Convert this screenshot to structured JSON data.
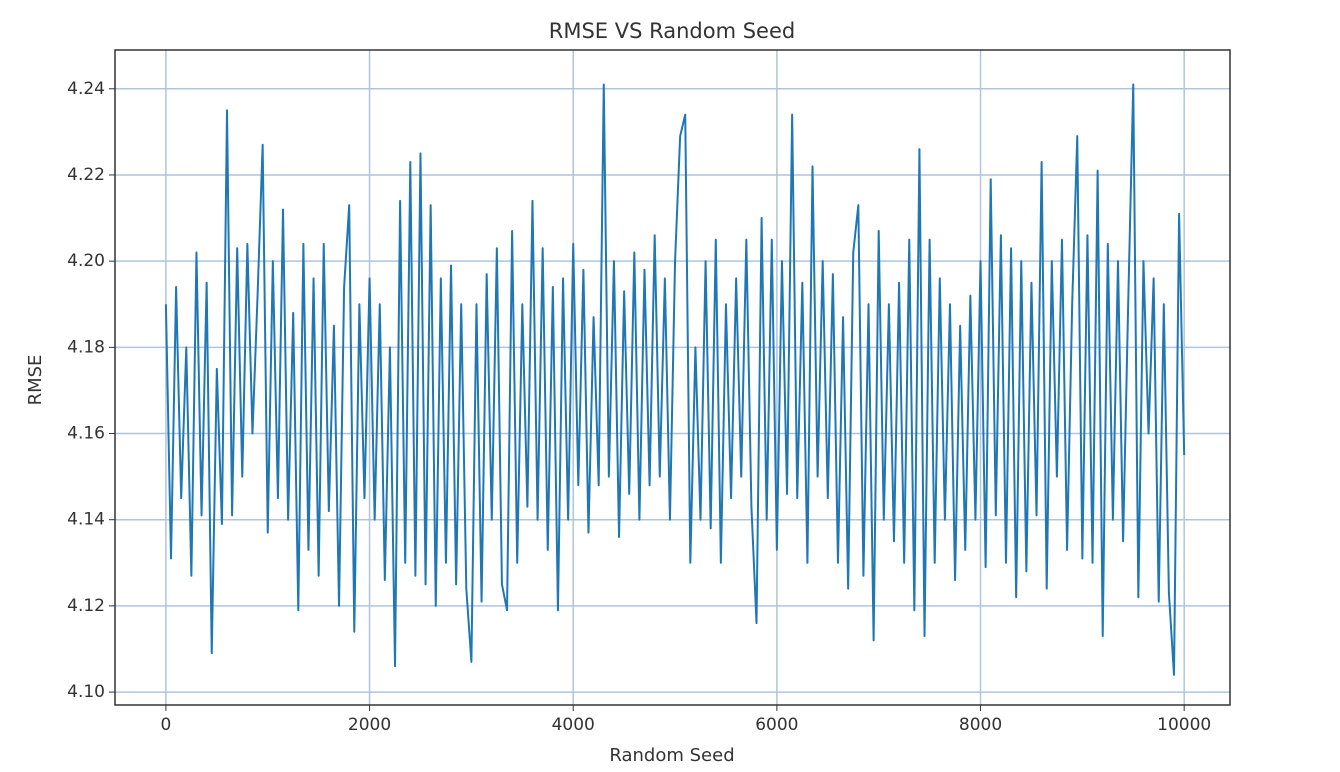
{
  "chart_data": {
    "type": "line",
    "title": "RMSE VS Random Seed",
    "x_label": "Random Seed",
    "y_label": "RMSE",
    "color": "#1f77b4",
    "grid": true,
    "xlim": [
      -500,
      10450
    ],
    "ylim": [
      4.097,
      4.249
    ],
    "xticks": [
      0,
      2000,
      4000,
      6000,
      8000,
      10000
    ],
    "yticks": [
      {
        "value": 4.1,
        "label": "4.10"
      },
      4.12,
      4.14,
      4.16,
      4.18,
      {
        "value": 4.2,
        "label": "4.20"
      },
      4.22,
      4.24
    ],
    "x": [
      0,
      50,
      100,
      150,
      200,
      250,
      300,
      350,
      400,
      450,
      500,
      550,
      600,
      650,
      700,
      750,
      800,
      850,
      900,
      950,
      1000,
      1050,
      1100,
      1150,
      1200,
      1250,
      1300,
      1350,
      1400,
      1450,
      1500,
      1550,
      1600,
      1650,
      1700,
      1750,
      1800,
      1850,
      1900,
      1950,
      2000,
      2050,
      2100,
      2150,
      2200,
      2250,
      2300,
      2350,
      2400,
      2450,
      2500,
      2550,
      2600,
      2650,
      2700,
      2750,
      2800,
      2850,
      2900,
      2950,
      3000,
      3050,
      3100,
      3150,
      3200,
      3250,
      3300,
      3350,
      3400,
      3450,
      3500,
      3550,
      3600,
      3650,
      3700,
      3750,
      3800,
      3850,
      3900,
      3950,
      4000,
      4050,
      4100,
      4150,
      4200,
      4250,
      4300,
      4350,
      4400,
      4450,
      4500,
      4550,
      4600,
      4650,
      4700,
      4750,
      4800,
      4850,
      4900,
      4950,
      5000,
      5050,
      5100,
      5150,
      5200,
      5250,
      5300,
      5350,
      5400,
      5450,
      5500,
      5550,
      5600,
      5650,
      5700,
      5750,
      5800,
      5850,
      5900,
      5950,
      6000,
      6050,
      6100,
      6150,
      6200,
      6250,
      6300,
      6350,
      6400,
      6450,
      6500,
      6550,
      6600,
      6650,
      6700,
      6750,
      6800,
      6850,
      6900,
      6950,
      7000,
      7050,
      7100,
      7150,
      7200,
      7250,
      7300,
      7350,
      7400,
      7450,
      7500,
      7550,
      7600,
      7650,
      7700,
      7750,
      7800,
      7850,
      7900,
      7950,
      8000,
      8050,
      8100,
      8150,
      8200,
      8250,
      8300,
      8350,
      8400,
      8450,
      8500,
      8550,
      8600,
      8650,
      8700,
      8750,
      8800,
      8850,
      8900,
      8950,
      9000,
      9050,
      9100,
      9150,
      9200,
      9250,
      9300,
      9350,
      9400,
      9450,
      9500,
      9550,
      9600,
      9650,
      9700,
      9750,
      9800,
      9850,
      9900,
      9950,
      10000
    ],
    "values": [
      4.19,
      4.131,
      4.194,
      4.145,
      4.18,
      4.127,
      4.202,
      4.141,
      4.195,
      4.109,
      4.175,
      4.139,
      4.235,
      4.141,
      4.203,
      4.15,
      4.204,
      4.16,
      4.192,
      4.227,
      4.137,
      4.2,
      4.145,
      4.212,
      4.14,
      4.188,
      4.119,
      4.204,
      4.133,
      4.196,
      4.127,
      4.204,
      4.142,
      4.185,
      4.12,
      4.194,
      4.213,
      4.114,
      4.19,
      4.145,
      4.196,
      4.14,
      4.19,
      4.126,
      4.18,
      4.106,
      4.214,
      4.13,
      4.223,
      4.127,
      4.225,
      4.125,
      4.213,
      4.12,
      4.196,
      4.13,
      4.199,
      4.125,
      4.19,
      4.124,
      4.107,
      4.19,
      4.121,
      4.197,
      4.14,
      4.203,
      4.125,
      4.119,
      4.207,
      4.13,
      4.19,
      4.143,
      4.214,
      4.14,
      4.203,
      4.133,
      4.194,
      4.119,
      4.196,
      4.14,
      4.204,
      4.148,
      4.198,
      4.137,
      4.187,
      4.148,
      4.241,
      4.15,
      4.2,
      4.136,
      4.193,
      4.146,
      4.202,
      4.14,
      4.198,
      4.148,
      4.206,
      4.15,
      4.196,
      4.14,
      4.2,
      4.229,
      4.234,
      4.13,
      4.18,
      4.14,
      4.2,
      4.138,
      4.205,
      4.13,
      4.19,
      4.145,
      4.196,
      4.15,
      4.205,
      4.143,
      4.116,
      4.21,
      4.14,
      4.205,
      4.133,
      4.2,
      4.146,
      4.234,
      4.145,
      4.195,
      4.13,
      4.222,
      4.15,
      4.2,
      4.145,
      4.197,
      4.13,
      4.187,
      4.124,
      4.202,
      4.213,
      4.127,
      4.19,
      4.112,
      4.207,
      4.14,
      4.19,
      4.135,
      4.195,
      4.13,
      4.205,
      4.119,
      4.226,
      4.113,
      4.205,
      4.13,
      4.196,
      4.14,
      4.19,
      4.126,
      4.185,
      4.133,
      4.192,
      4.14,
      4.2,
      4.129,
      4.219,
      4.141,
      4.206,
      4.13,
      4.203,
      4.122,
      4.2,
      4.128,
      4.195,
      4.141,
      4.223,
      4.124,
      4.2,
      4.15,
      4.205,
      4.133,
      4.19,
      4.229,
      4.131,
      4.206,
      4.13,
      4.221,
      4.113,
      4.204,
      4.14,
      4.2,
      4.135,
      4.19,
      4.241,
      4.122,
      4.2,
      4.16,
      4.196,
      4.121,
      4.19,
      4.123,
      4.104,
      4.211,
      4.155
    ]
  }
}
